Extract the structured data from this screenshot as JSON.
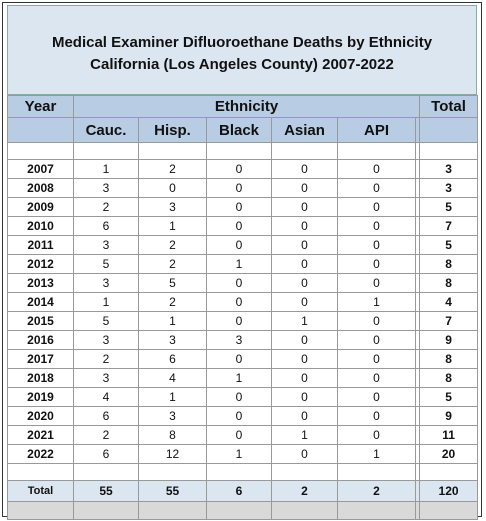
{
  "title": {
    "line1": "Medical Examiner Difluoroethane Deaths by Ethnicity",
    "line2": "California (Los Angeles County) 2007-2022"
  },
  "header": {
    "year": "Year",
    "group": "Ethnicity",
    "total": "Total",
    "columns": [
      "Cauc.",
      "Hisp.",
      "Black",
      "Asian",
      "API"
    ]
  },
  "table": {
    "rows": [
      [
        "2007",
        1,
        2,
        0,
        0,
        0,
        3
      ],
      [
        "2008",
        3,
        0,
        0,
        0,
        0,
        3
      ],
      [
        "2009",
        2,
        3,
        0,
        0,
        0,
        5
      ],
      [
        "2010",
        6,
        1,
        0,
        0,
        0,
        7
      ],
      [
        "2011",
        3,
        2,
        0,
        0,
        0,
        5
      ],
      [
        "2012",
        5,
        2,
        1,
        0,
        0,
        8
      ],
      [
        "2013",
        3,
        5,
        0,
        0,
        0,
        8
      ],
      [
        "2014",
        1,
        2,
        0,
        0,
        1,
        4
      ],
      [
        "2015",
        5,
        1,
        0,
        1,
        0,
        7
      ],
      [
        "2016",
        3,
        3,
        3,
        0,
        0,
        9
      ],
      [
        "2017",
        2,
        6,
        0,
        0,
        0,
        8
      ],
      [
        "2018",
        3,
        4,
        1,
        0,
        0,
        8
      ],
      [
        "2019",
        4,
        1,
        0,
        0,
        0,
        5
      ],
      [
        "2020",
        6,
        3,
        0,
        0,
        0,
        9
      ],
      [
        "2021",
        2,
        8,
        0,
        1,
        0,
        11
      ],
      [
        "2022",
        6,
        12,
        1,
        0,
        1,
        20
      ]
    ],
    "total": [
      "Total",
      55,
      55,
      6,
      2,
      2,
      120
    ]
  }
}
